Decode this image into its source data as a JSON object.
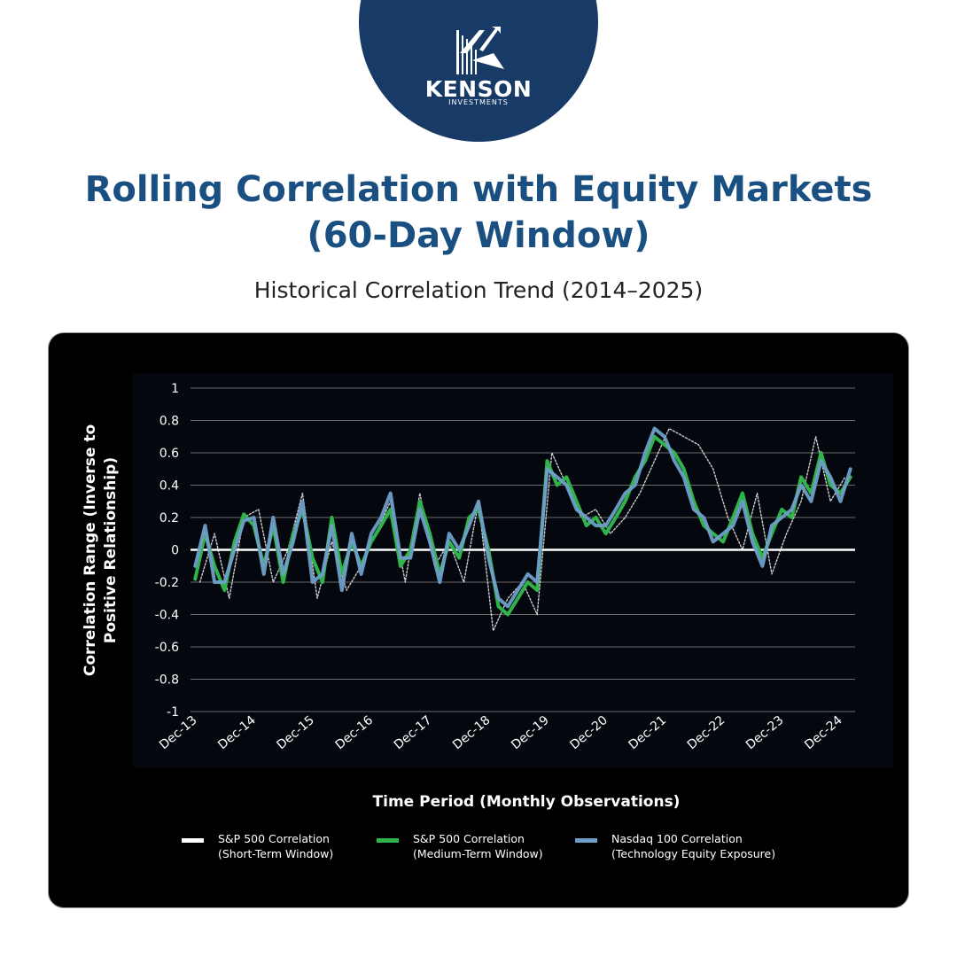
{
  "brand": {
    "name": "KENSON",
    "subtitle": "INVESTMENTS",
    "color": "#173a66"
  },
  "header": {
    "title_line1": "Rolling Correlation with Equity Markets",
    "title_line2": "(60-Day Window)",
    "subtitle": "Historical Correlation Trend (2014–2025)"
  },
  "chart_data": {
    "type": "line",
    "ylabel_line1": "Correlation Range (Inverse to",
    "ylabel_line2": "Positive Relationship)",
    "xlabel": "Time Period (Monthly Observations)",
    "ylim": [
      -1,
      1
    ],
    "yticks": [
      "1",
      "0.8",
      "0.6",
      "0.4",
      "0.2",
      "0",
      "-0.2",
      "-0.4",
      "-0.6",
      "-0.8",
      "-1"
    ],
    "ytick_values": [
      1,
      0.8,
      0.6,
      0.4,
      0.2,
      0,
      -0.2,
      -0.4,
      -0.6,
      -0.8,
      -1
    ],
    "x_tick_labels": [
      "Dec-13",
      "Dec-14",
      "Dec-15",
      "Dec-16",
      "Dec-17",
      "Dec-18",
      "Dec-19",
      "Dec-20",
      "Dec-21",
      "Dec-22",
      "Dec-23",
      "Dec-24"
    ],
    "x_tick_years": [
      2013.92,
      2014.92,
      2015.92,
      2016.92,
      2017.92,
      2018.92,
      2019.92,
      2020.92,
      2021.92,
      2022.92,
      2023.92,
      2024.92
    ],
    "grid": true,
    "legend_position": "bottom",
    "series": [
      {
        "name": "S&P 500 Correlation (Short-Term Window)",
        "legend_line1": "S&P 500 Correlation",
        "legend_line2": "(Short-Term Window)",
        "color": "#ffffff",
        "x": [
          2014.08,
          2014.33,
          2014.58,
          2014.83,
          2015.08,
          2015.33,
          2015.58,
          2015.83,
          2016.08,
          2016.33,
          2016.58,
          2016.83,
          2017.08,
          2017.33,
          2017.58,
          2017.83,
          2018.08,
          2018.33,
          2018.58,
          2018.83,
          2019.08,
          2019.33,
          2019.58,
          2019.83,
          2020.08,
          2020.33,
          2020.58,
          2020.83,
          2021.08,
          2021.33,
          2021.58,
          2021.83,
          2022.08,
          2022.33,
          2022.58,
          2022.83,
          2023.08,
          2023.33,
          2023.58,
          2023.83,
          2024.08,
          2024.33,
          2024.58,
          2024.83,
          2025.08
        ],
        "y": [
          -0.2,
          0.1,
          -0.3,
          0.2,
          0.25,
          -0.2,
          0.0,
          0.35,
          -0.3,
          0.05,
          -0.25,
          -0.1,
          0.1,
          0.3,
          -0.2,
          0.35,
          -0.1,
          0.05,
          -0.2,
          0.3,
          -0.5,
          -0.3,
          -0.2,
          -0.4,
          0.6,
          0.4,
          0.2,
          0.25,
          0.1,
          0.2,
          0.35,
          0.55,
          0.75,
          0.7,
          0.65,
          0.5,
          0.2,
          0.0,
          0.35,
          -0.15,
          0.1,
          0.3,
          0.7,
          0.3,
          0.45
        ]
      },
      {
        "name": "S&P 500 Correlation (Medium-Term Window)",
        "legend_line1": "S&P 500 Correlation",
        "legend_line2": "(Medium-Term Window)",
        "color": "#2fb34a",
        "x": [
          2014.0,
          2014.17,
          2014.33,
          2014.5,
          2014.67,
          2014.83,
          2015.0,
          2015.17,
          2015.33,
          2015.5,
          2015.67,
          2015.83,
          2016.0,
          2016.17,
          2016.33,
          2016.5,
          2016.67,
          2016.83,
          2017.0,
          2017.17,
          2017.33,
          2017.5,
          2017.67,
          2017.83,
          2018.0,
          2018.17,
          2018.33,
          2018.5,
          2018.67,
          2018.83,
          2019.0,
          2019.17,
          2019.33,
          2019.5,
          2019.67,
          2019.83,
          2020.0,
          2020.17,
          2020.33,
          2020.5,
          2020.67,
          2020.83,
          2021.0,
          2021.17,
          2021.33,
          2021.5,
          2021.67,
          2021.83,
          2022.0,
          2022.17,
          2022.33,
          2022.5,
          2022.67,
          2022.83,
          2023.0,
          2023.17,
          2023.33,
          2023.5,
          2023.67,
          2023.83,
          2024.0,
          2024.17,
          2024.33,
          2024.5,
          2024.67,
          2024.83,
          2025.0,
          2025.17
        ],
        "y": [
          -0.18,
          0.1,
          -0.1,
          -0.25,
          0.05,
          0.22,
          0.15,
          -0.1,
          0.15,
          -0.2,
          0.1,
          0.25,
          -0.05,
          -0.2,
          0.2,
          -0.15,
          0.05,
          -0.1,
          0.05,
          0.15,
          0.25,
          -0.1,
          0.0,
          0.3,
          0.1,
          -0.15,
          0.05,
          -0.05,
          0.2,
          0.25,
          0.0,
          -0.35,
          -0.4,
          -0.3,
          -0.2,
          -0.25,
          0.55,
          0.4,
          0.45,
          0.3,
          0.15,
          0.2,
          0.1,
          0.2,
          0.3,
          0.45,
          0.55,
          0.7,
          0.65,
          0.6,
          0.5,
          0.3,
          0.15,
          0.1,
          0.05,
          0.2,
          0.35,
          0.1,
          -0.05,
          0.1,
          0.25,
          0.2,
          0.45,
          0.35,
          0.6,
          0.4,
          0.35,
          0.45
        ]
      },
      {
        "name": "Nasdaq 100 Correlation (Technology Equity Exposure)",
        "legend_line1": "Nasdaq 100 Correlation",
        "legend_line2": "(Technology Equity Exposure)",
        "color": "#6f9ec9",
        "x": [
          2014.0,
          2014.17,
          2014.33,
          2014.5,
          2014.67,
          2014.83,
          2015.0,
          2015.17,
          2015.33,
          2015.5,
          2015.67,
          2015.83,
          2016.0,
          2016.17,
          2016.33,
          2016.5,
          2016.67,
          2016.83,
          2017.0,
          2017.17,
          2017.33,
          2017.5,
          2017.67,
          2017.83,
          2018.0,
          2018.17,
          2018.33,
          2018.5,
          2018.67,
          2018.83,
          2019.0,
          2019.17,
          2019.33,
          2019.5,
          2019.67,
          2019.83,
          2020.0,
          2020.17,
          2020.33,
          2020.5,
          2020.67,
          2020.83,
          2021.0,
          2021.17,
          2021.33,
          2021.5,
          2021.67,
          2021.83,
          2022.0,
          2022.17,
          2022.33,
          2022.5,
          2022.67,
          2022.83,
          2023.0,
          2023.17,
          2023.33,
          2023.5,
          2023.67,
          2023.83,
          2024.0,
          2024.17,
          2024.33,
          2024.5,
          2024.67,
          2024.83,
          2025.0,
          2025.17
        ],
        "y": [
          -0.1,
          0.15,
          -0.2,
          -0.2,
          0.0,
          0.18,
          0.2,
          -0.15,
          0.2,
          -0.15,
          0.05,
          0.3,
          -0.2,
          -0.15,
          0.15,
          -0.25,
          0.1,
          -0.15,
          0.1,
          0.2,
          0.35,
          -0.05,
          -0.05,
          0.25,
          0.05,
          -0.2,
          0.1,
          0.0,
          0.15,
          0.3,
          -0.05,
          -0.3,
          -0.35,
          -0.25,
          -0.15,
          -0.2,
          0.5,
          0.45,
          0.4,
          0.25,
          0.2,
          0.15,
          0.15,
          0.25,
          0.35,
          0.4,
          0.6,
          0.75,
          0.7,
          0.55,
          0.45,
          0.25,
          0.2,
          0.05,
          0.1,
          0.15,
          0.3,
          0.05,
          -0.1,
          0.15,
          0.2,
          0.25,
          0.4,
          0.3,
          0.55,
          0.45,
          0.3,
          0.5
        ]
      }
    ]
  }
}
